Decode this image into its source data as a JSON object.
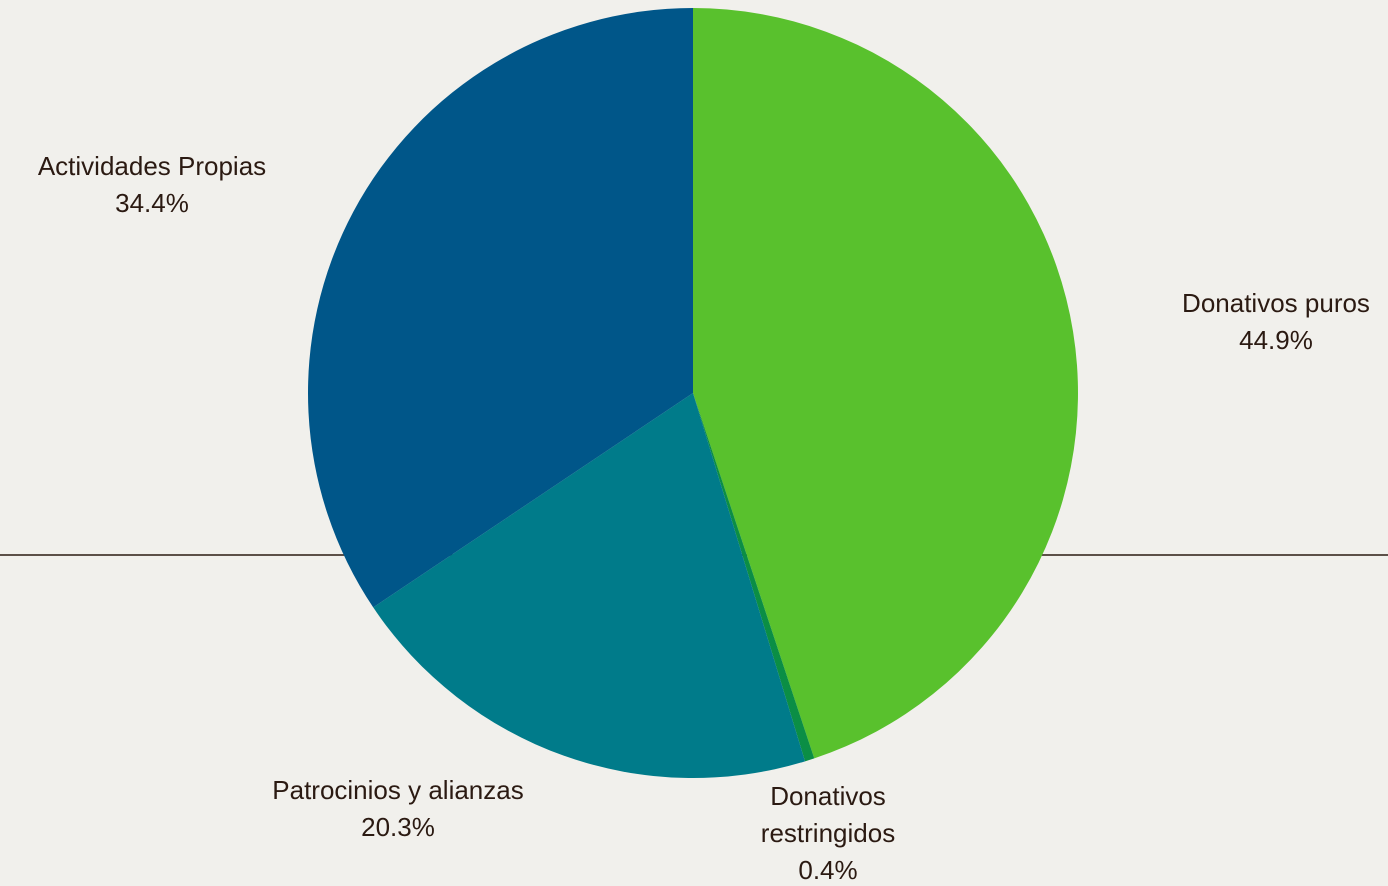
{
  "chart_data": {
    "type": "pie",
    "title": "",
    "start_angle_deg": 0,
    "direction": "clockwise",
    "slices": [
      {
        "label": "Donativos puros",
        "label_lines": [
          "Donativos puros"
        ],
        "percent_text": "44.9%",
        "value": 44.9,
        "color": "#59c12d"
      },
      {
        "label": "Donativos restringidos",
        "label_lines": [
          "Donativos",
          "restringidos"
        ],
        "percent_text": "0.4%",
        "value": 0.4,
        "color": "#0b8e45"
      },
      {
        "label": "Patrocinios y alianzas",
        "label_lines": [
          "Patrocinios y alianzas"
        ],
        "percent_text": "20.3%",
        "value": 20.3,
        "color": "#007b8a"
      },
      {
        "label": "Actividades Propias",
        "label_lines": [
          "Actividades Propias"
        ],
        "percent_text": "34.4%",
        "value": 34.4,
        "color": "#005689"
      }
    ],
    "background_color": "#f1f0ec",
    "rule_color": "#2b1a12",
    "text_color": "#2b1a12"
  }
}
